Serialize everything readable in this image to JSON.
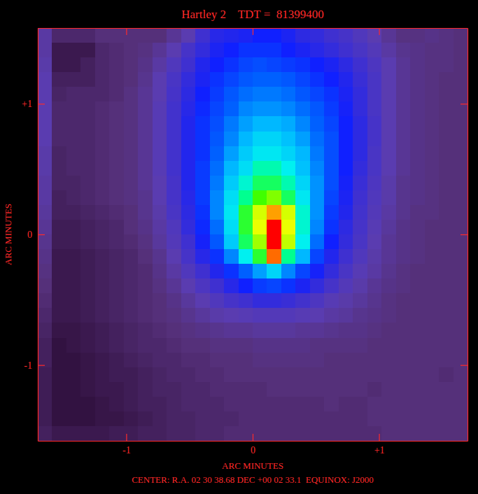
{
  "chart_data": {
    "type": "heatmap",
    "title": "Hartley 2    TDT =  81399400",
    "subtitle": "CENTER: R.A. 02 30 38.68 DEC +00 02 33.1  EQUINOX: J2000",
    "x_label": "ARC MINUTES",
    "y_label": "ARC MINUTES",
    "xlim": [
      -1.7,
      1.7
    ],
    "ylim": [
      -1.58,
      1.58
    ],
    "xticks": [
      -1,
      0,
      {
        "value": 1,
        "label": "+1"
      }
    ],
    "yticks": [
      -1,
      0,
      {
        "value": 1,
        "label": "+1"
      }
    ],
    "zlim": [
      0,
      100
    ],
    "z": [
      [
        20,
        12,
        12,
        12,
        14,
        14,
        14,
        14,
        14,
        18,
        22,
        30,
        34,
        35,
        36,
        38,
        38,
        36,
        33,
        32,
        30,
        28,
        25,
        22,
        18,
        15,
        15,
        16,
        15,
        14
      ],
      [
        20,
        8,
        8,
        8,
        12,
        13,
        14,
        15,
        18,
        22,
        28,
        32,
        36,
        38,
        40,
        40,
        40,
        38,
        36,
        34,
        32,
        30,
        27,
        24,
        20,
        17,
        16,
        15,
        15,
        14
      ],
      [
        21,
        8,
        8,
        10,
        12,
        13,
        14,
        16,
        20,
        25,
        30,
        35,
        38,
        40,
        42,
        43,
        42,
        41,
        40,
        38,
        36,
        33,
        30,
        26,
        22,
        18,
        16,
        15,
        15,
        14
      ],
      [
        22,
        10,
        10,
        10,
        12,
        13,
        14,
        17,
        22,
        27,
        32,
        36,
        40,
        42,
        44,
        45,
        45,
        44,
        42,
        40,
        38,
        35,
        31,
        27,
        22,
        18,
        16,
        15,
        14,
        14
      ],
      [
        22,
        11,
        12,
        12,
        12,
        13,
        15,
        18,
        22,
        28,
        33,
        38,
        41,
        44,
        46,
        47,
        47,
        46,
        44,
        42,
        40,
        36,
        32,
        27,
        22,
        18,
        16,
        15,
        14,
        14
      ],
      [
        22,
        12,
        12,
        12,
        13,
        14,
        15,
        18,
        23,
        29,
        34,
        39,
        42,
        45,
        48,
        49,
        49,
        48,
        46,
        44,
        41,
        37,
        32,
        27,
        22,
        18,
        16,
        15,
        14,
        14
      ],
      [
        22,
        12,
        12,
        12,
        13,
        14,
        15,
        18,
        23,
        29,
        35,
        40,
        43,
        47,
        50,
        52,
        52,
        51,
        48,
        45,
        42,
        38,
        33,
        28,
        22,
        18,
        16,
        15,
        14,
        14
      ],
      [
        22,
        12,
        12,
        12,
        13,
        14,
        15,
        18,
        23,
        29,
        35,
        40,
        44,
        48,
        52,
        55,
        55,
        53,
        50,
        46,
        43,
        38,
        33,
        28,
        22,
        18,
        16,
        15,
        14,
        14
      ],
      [
        21,
        11,
        12,
        12,
        13,
        14,
        15,
        18,
        23,
        29,
        35,
        40,
        45,
        50,
        54,
        57,
        57,
        55,
        52,
        47,
        43,
        38,
        33,
        27,
        22,
        18,
        16,
        15,
        14,
        14
      ],
      [
        21,
        11,
        12,
        12,
        13,
        14,
        15,
        18,
        23,
        29,
        35,
        41,
        46,
        52,
        56,
        62,
        62,
        58,
        53,
        48,
        43,
        38,
        32,
        27,
        22,
        18,
        16,
        15,
        14,
        14
      ],
      [
        20,
        11,
        11,
        12,
        13,
        14,
        15,
        18,
        22,
        28,
        35,
        41,
        47,
        54,
        60,
        66,
        66,
        62,
        55,
        49,
        43,
        37,
        31,
        26,
        21,
        17,
        16,
        15,
        14,
        14
      ],
      [
        20,
        10,
        11,
        12,
        13,
        14,
        15,
        17,
        22,
        28,
        34,
        41,
        48,
        56,
        64,
        70,
        74,
        66,
        57,
        49,
        42,
        36,
        30,
        25,
        21,
        17,
        16,
        15,
        14,
        14
      ],
      [
        19,
        10,
        10,
        11,
        12,
        13,
        14,
        17,
        21,
        27,
        33,
        40,
        48,
        57,
        68,
        80,
        90,
        80,
        60,
        49,
        41,
        35,
        29,
        24,
        20,
        17,
        15,
        15,
        14,
        14
      ],
      [
        18,
        9,
        9,
        10,
        11,
        12,
        14,
        16,
        20,
        25,
        32,
        39,
        46,
        56,
        68,
        82,
        98,
        82,
        60,
        48,
        40,
        33,
        28,
        23,
        19,
        16,
        15,
        14,
        14,
        14
      ],
      [
        17,
        9,
        9,
        10,
        11,
        12,
        13,
        15,
        19,
        24,
        30,
        37,
        44,
        54,
        66,
        76,
        99,
        78,
        58,
        46,
        38,
        32,
        27,
        22,
        18,
        16,
        15,
        14,
        14,
        14
      ],
      [
        16,
        8,
        8,
        9,
        10,
        11,
        12,
        14,
        17,
        22,
        28,
        34,
        40,
        48,
        58,
        68,
        92,
        64,
        52,
        42,
        35,
        30,
        25,
        21,
        18,
        16,
        15,
        14,
        14,
        14
      ],
      [
        15,
        8,
        8,
        9,
        10,
        11,
        12,
        13,
        16,
        20,
        25,
        30,
        35,
        40,
        45,
        50,
        55,
        48,
        42,
        37,
        32,
        27,
        23,
        20,
        17,
        15,
        14,
        14,
        14,
        14
      ],
      [
        14,
        8,
        8,
        9,
        10,
        11,
        12,
        13,
        15,
        18,
        22,
        26,
        30,
        34,
        38,
        41,
        42,
        40,
        36,
        32,
        28,
        24,
        21,
        18,
        16,
        15,
        14,
        14,
        14,
        14
      ],
      [
        13,
        8,
        8,
        9,
        10,
        11,
        12,
        13,
        14,
        16,
        19,
        22,
        25,
        28,
        30,
        32,
        32,
        31,
        29,
        26,
        23,
        21,
        19,
        17,
        15,
        14,
        14,
        14,
        14,
        14
      ],
      [
        12,
        8,
        8,
        9,
        10,
        11,
        12,
        13,
        14,
        15,
        17,
        19,
        21,
        22,
        23,
        24,
        24,
        24,
        23,
        22,
        20,
        19,
        17,
        16,
        15,
        14,
        14,
        14,
        14,
        14
      ],
      [
        11,
        7,
        7,
        8,
        9,
        10,
        11,
        12,
        13,
        14,
        15,
        16,
        17,
        18,
        18,
        19,
        19,
        19,
        18,
        18,
        17,
        16,
        16,
        15,
        14,
        14,
        14,
        14,
        14,
        14
      ],
      [
        10,
        6,
        7,
        8,
        9,
        10,
        11,
        12,
        12,
        13,
        14,
        14,
        15,
        15,
        15,
        16,
        16,
        16,
        16,
        15,
        15,
        15,
        15,
        14,
        14,
        14,
        14,
        14,
        14,
        14
      ],
      [
        10,
        6,
        6,
        7,
        8,
        9,
        10,
        11,
        12,
        12,
        13,
        13,
        14,
        14,
        14,
        15,
        15,
        15,
        15,
        15,
        14,
        14,
        14,
        14,
        14,
        14,
        14,
        14,
        14,
        14
      ],
      [
        9,
        6,
        6,
        7,
        8,
        9,
        9,
        10,
        11,
        12,
        12,
        13,
        13,
        14,
        14,
        14,
        14,
        14,
        14,
        14,
        14,
        14,
        14,
        14,
        14,
        14,
        14,
        14,
        13,
        14
      ],
      [
        9,
        6,
        6,
        7,
        8,
        8,
        9,
        10,
        11,
        11,
        12,
        12,
        13,
        13,
        13,
        13,
        14,
        14,
        14,
        14,
        14,
        14,
        14,
        13,
        14,
        14,
        14,
        14,
        14,
        14
      ],
      [
        9,
        6,
        6,
        6,
        7,
        8,
        9,
        10,
        10,
        11,
        12,
        12,
        12,
        13,
        13,
        13,
        13,
        13,
        13,
        13,
        14,
        13,
        13,
        14,
        14,
        14,
        14,
        14,
        14,
        14
      ],
      [
        9,
        6,
        6,
        6,
        7,
        7,
        8,
        9,
        10,
        11,
        11,
        12,
        12,
        12,
        13,
        13,
        13,
        13,
        13,
        13,
        13,
        13,
        13,
        14,
        14,
        14,
        14,
        14,
        14,
        14
      ],
      [
        10,
        8,
        8,
        8,
        8,
        9,
        9,
        10,
        10,
        11,
        11,
        12,
        12,
        13,
        13,
        13,
        13,
        13,
        13,
        13,
        13,
        13,
        13,
        13,
        14,
        14,
        14,
        14,
        14,
        14
      ]
    ]
  }
}
